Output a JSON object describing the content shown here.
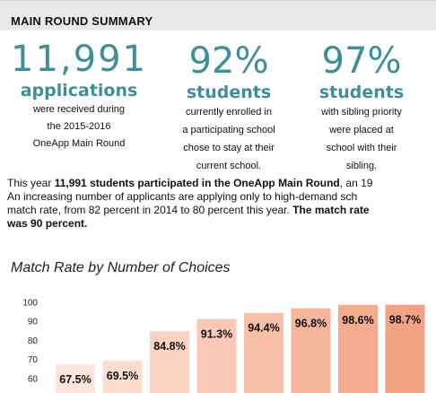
{
  "header": {
    "title": "MAIN ROUND SUMMARY"
  },
  "stats": [
    {
      "big": "11,991",
      "word": "applications",
      "desc": [
        "were received during",
        "the 2015-2016",
        "OneApp Main Round"
      ]
    },
    {
      "big": "92%",
      "word": "students",
      "desc": [
        "currently enrolled in",
        "a participating school",
        "chose to stay at their",
        "current school."
      ]
    },
    {
      "big": "97%",
      "word": "students",
      "desc": [
        "with sibling priority",
        "were placed at",
        "school with their",
        "sibling."
      ]
    }
  ],
  "paragraph": {
    "line1_pre": "This year ",
    "line1_bold": "11,991 students participated in the OneApp Main Round",
    "line1_post": ", an 19",
    "line2": "An increasing number of applicants are applying only to high-demand sch",
    "line3_pre": "match rate, from 82 percent in 2014 to 80 percent this year. ",
    "line3_bold": "The match rate",
    "line4_bold": "was 90 percent."
  },
  "chart_title": "Match Rate by Number of Choices",
  "chart_data": {
    "type": "bar",
    "title": "Match Rate by Number of Choices",
    "values": [
      67.5,
      69.5,
      84.8,
      91.3,
      94.4,
      96.8,
      98.6,
      98.7
    ],
    "value_labels": [
      "67.5%",
      "69.5%",
      "84.8%",
      "91.3%",
      "94.4%",
      "96.8%",
      "98.6%",
      "98.7%"
    ],
    "y_ticks": [
      60,
      70,
      80,
      90,
      100
    ],
    "ylim": [
      60,
      100
    ],
    "colors": [
      "#fde6dc",
      "#fcddd0",
      "#fbd3c3",
      "#f9c9b5",
      "#f8bfa8",
      "#f6b59b",
      "#f4ab8e",
      "#f2a384"
    ],
    "grid": false
  }
}
